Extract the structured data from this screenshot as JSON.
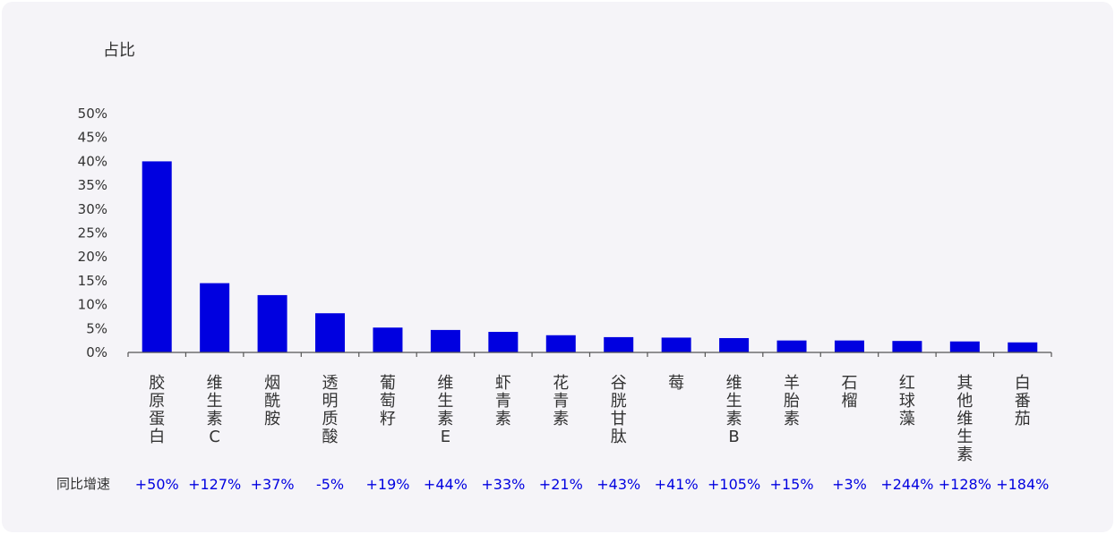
{
  "chart_data": {
    "type": "bar",
    "ylabel": "占比",
    "ylim": [
      0,
      50
    ],
    "yticks": [
      "50%",
      "45%",
      "40%",
      "35%",
      "30%",
      "25%",
      "20%",
      "15%",
      "10%",
      "5%",
      "0%"
    ],
    "bar_color": "#0000e0",
    "categories": [
      "胶原蛋白",
      "维生素C",
      "烟酰胺",
      "透明质酸",
      "葡萄籽",
      "维生素E",
      "虾青素",
      "花青素",
      "谷胱甘肽",
      "莓",
      "维生素B",
      "羊胎素",
      "石榴",
      "红球藻",
      "其他维生素",
      "白番茄"
    ],
    "values": [
      40,
      14.5,
      12,
      8.2,
      5.2,
      4.7,
      4.3,
      3.6,
      3.2,
      3.1,
      3.0,
      2.5,
      2.5,
      2.4,
      2.3,
      2.1
    ],
    "growth_row_label": "同比增速",
    "growth": [
      "+50%",
      "+127%",
      "+37%",
      "-5%",
      "+19%",
      "+44%",
      "+33%",
      "+21%",
      "+43%",
      "+41%",
      "+105%",
      "+15%",
      "+3%",
      "+244%",
      "+128%",
      "+184%"
    ]
  }
}
